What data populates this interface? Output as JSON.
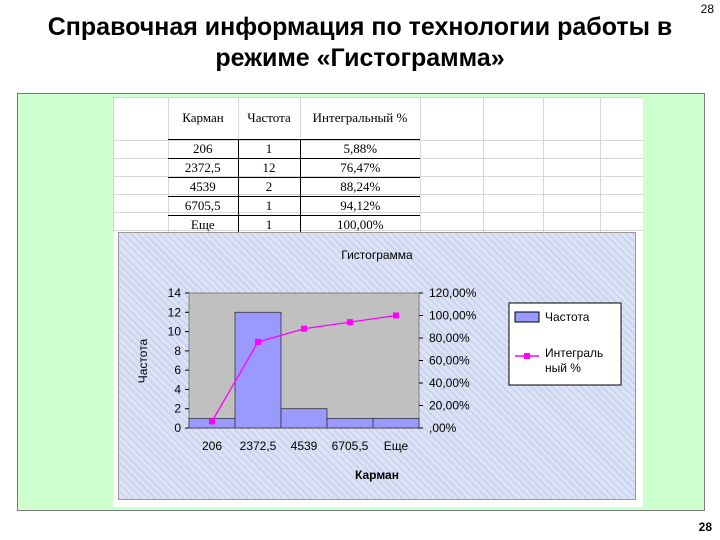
{
  "slide": {
    "title_line1": "Справочная информация по технологии работы в",
    "title_line2": "режиме «Гистограмма»",
    "page_number_top": "28",
    "page_number_bottom": "28"
  },
  "table": {
    "headers": [
      "Карман",
      "Частота",
      "Интегральный %"
    ],
    "rows": [
      [
        "206",
        "1",
        "5,88%"
      ],
      [
        "2372,5",
        "12",
        "76,47%"
      ],
      [
        "4539",
        "2",
        "88,24%"
      ],
      [
        "6705,5",
        "1",
        "94,12%"
      ],
      [
        "Еще",
        "1",
        "100,00%"
      ]
    ]
  },
  "chart_data": {
    "type": "bar",
    "title": "Гистограмма",
    "xlabel": "Карман",
    "ylabel": "Частота",
    "categories": [
      "206",
      "2372,5",
      "4539",
      "6705,5",
      "Еще"
    ],
    "series": [
      {
        "name": "Частота",
        "kind": "bar",
        "axis": "left",
        "values": [
          1,
          12,
          2,
          1,
          1
        ],
        "color": "#9999ff"
      },
      {
        "name": "Интегральный %",
        "kind": "line",
        "axis": "right",
        "values": [
          5.88,
          76.47,
          88.24,
          94.12,
          100.0
        ],
        "color": "#ff00ff"
      }
    ],
    "ylim": [
      0,
      14
    ],
    "yticks": [
      "0",
      "2",
      "4",
      "6",
      "8",
      "10",
      "12",
      "14"
    ],
    "y2lim": [
      0,
      120
    ],
    "y2ticks": [
      ",00%",
      "20,00%",
      "40,00%",
      "60,00%",
      "80,00%",
      "100,00%",
      "120,00%"
    ],
    "legend": {
      "position": "right",
      "entries": [
        "Частота",
        "Интеграль ный %"
      ]
    },
    "plot_background": "#c0c0c0",
    "grid": false
  }
}
